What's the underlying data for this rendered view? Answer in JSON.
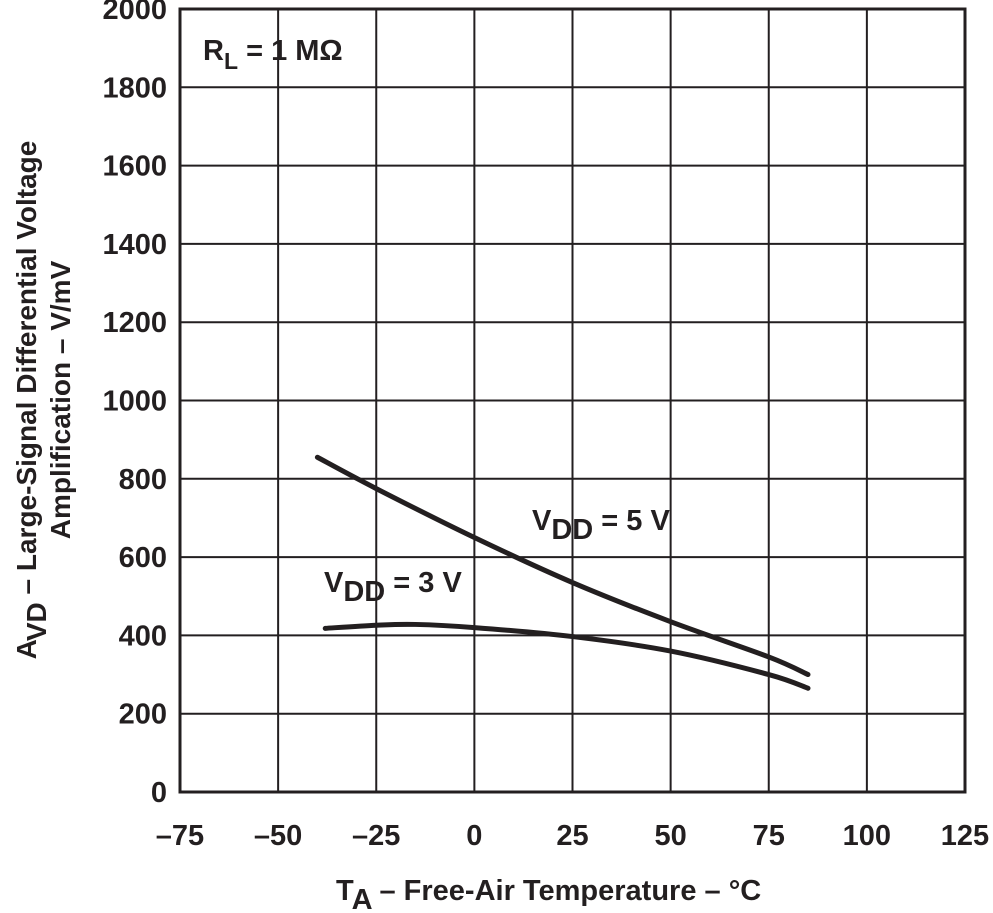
{
  "chart_data": {
    "type": "line",
    "xlabel": {
      "main": "T",
      "sub": "A",
      "rest": " – Free-Air Temperature – °C"
    },
    "ylabel": {
      "line1_main": "A",
      "line1_sub": "VD",
      "line1_rest": " – Large-Signal Differential Voltage",
      "line2": "Amplification – V/mV"
    },
    "xlim": [
      -75,
      125
    ],
    "ylim": [
      0,
      2000
    ],
    "x_ticks": [
      -75,
      -50,
      -25,
      0,
      25,
      50,
      75,
      100,
      125
    ],
    "x_tick_labels": [
      "–75",
      "–50",
      "–25",
      "0",
      "25",
      "50",
      "75",
      "100",
      "125"
    ],
    "y_ticks": [
      0,
      200,
      400,
      600,
      800,
      1000,
      1200,
      1400,
      1600,
      1800,
      2000
    ],
    "y_tick_labels": [
      "0",
      "200",
      "400",
      "600",
      "800",
      "1000",
      "1200",
      "1400",
      "1600",
      "1800",
      "2000"
    ],
    "grid": true,
    "annotation": {
      "main": "R",
      "sub": "L",
      "rest": " = 1 MΩ"
    },
    "series": [
      {
        "name": "VDD = 5 V",
        "label_main": "V",
        "label_sub": "DD",
        "label_rest": " = 5 V",
        "x": [
          -40,
          -25,
          0,
          25,
          50,
          75,
          85
        ],
        "y": [
          855,
          775,
          650,
          535,
          435,
          345,
          300
        ]
      },
      {
        "name": "VDD = 3 V",
        "label_main": "V",
        "label_sub": "DD",
        "label_rest": " = 3 V",
        "x": [
          -38,
          -25,
          -15,
          0,
          25,
          50,
          75,
          85
        ],
        "y": [
          418,
          426,
          428,
          420,
          397,
          360,
          300,
          265
        ]
      }
    ]
  }
}
